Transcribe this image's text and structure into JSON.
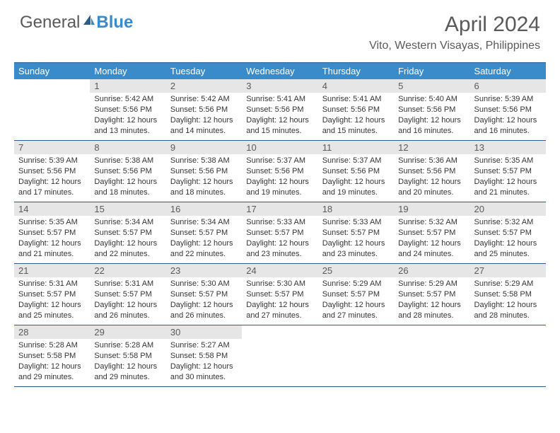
{
  "logo": {
    "text1": "General",
    "text2": "Blue"
  },
  "header": {
    "month_title": "April 2024",
    "location": "Vito, Western Visayas, Philippines"
  },
  "colors": {
    "header_bg": "#3a8bc9",
    "header_text": "#ffffff",
    "day_num_bg": "#e6e6e6",
    "border": "#2b5d8a",
    "text": "#353535",
    "title": "#5a5a5a"
  },
  "weekdays": [
    "Sunday",
    "Monday",
    "Tuesday",
    "Wednesday",
    "Thursday",
    "Friday",
    "Saturday"
  ],
  "weeks": [
    [
      null,
      {
        "n": "1",
        "sunrise": "Sunrise: 5:42 AM",
        "sunset": "Sunset: 5:56 PM",
        "day1": "Daylight: 12 hours",
        "day2": "and 13 minutes."
      },
      {
        "n": "2",
        "sunrise": "Sunrise: 5:42 AM",
        "sunset": "Sunset: 5:56 PM",
        "day1": "Daylight: 12 hours",
        "day2": "and 14 minutes."
      },
      {
        "n": "3",
        "sunrise": "Sunrise: 5:41 AM",
        "sunset": "Sunset: 5:56 PM",
        "day1": "Daylight: 12 hours",
        "day2": "and 15 minutes."
      },
      {
        "n": "4",
        "sunrise": "Sunrise: 5:41 AM",
        "sunset": "Sunset: 5:56 PM",
        "day1": "Daylight: 12 hours",
        "day2": "and 15 minutes."
      },
      {
        "n": "5",
        "sunrise": "Sunrise: 5:40 AM",
        "sunset": "Sunset: 5:56 PM",
        "day1": "Daylight: 12 hours",
        "day2": "and 16 minutes."
      },
      {
        "n": "6",
        "sunrise": "Sunrise: 5:39 AM",
        "sunset": "Sunset: 5:56 PM",
        "day1": "Daylight: 12 hours",
        "day2": "and 16 minutes."
      }
    ],
    [
      {
        "n": "7",
        "sunrise": "Sunrise: 5:39 AM",
        "sunset": "Sunset: 5:56 PM",
        "day1": "Daylight: 12 hours",
        "day2": "and 17 minutes."
      },
      {
        "n": "8",
        "sunrise": "Sunrise: 5:38 AM",
        "sunset": "Sunset: 5:56 PM",
        "day1": "Daylight: 12 hours",
        "day2": "and 18 minutes."
      },
      {
        "n": "9",
        "sunrise": "Sunrise: 5:38 AM",
        "sunset": "Sunset: 5:56 PM",
        "day1": "Daylight: 12 hours",
        "day2": "and 18 minutes."
      },
      {
        "n": "10",
        "sunrise": "Sunrise: 5:37 AM",
        "sunset": "Sunset: 5:56 PM",
        "day1": "Daylight: 12 hours",
        "day2": "and 19 minutes."
      },
      {
        "n": "11",
        "sunrise": "Sunrise: 5:37 AM",
        "sunset": "Sunset: 5:56 PM",
        "day1": "Daylight: 12 hours",
        "day2": "and 19 minutes."
      },
      {
        "n": "12",
        "sunrise": "Sunrise: 5:36 AM",
        "sunset": "Sunset: 5:56 PM",
        "day1": "Daylight: 12 hours",
        "day2": "and 20 minutes."
      },
      {
        "n": "13",
        "sunrise": "Sunrise: 5:35 AM",
        "sunset": "Sunset: 5:57 PM",
        "day1": "Daylight: 12 hours",
        "day2": "and 21 minutes."
      }
    ],
    [
      {
        "n": "14",
        "sunrise": "Sunrise: 5:35 AM",
        "sunset": "Sunset: 5:57 PM",
        "day1": "Daylight: 12 hours",
        "day2": "and 21 minutes."
      },
      {
        "n": "15",
        "sunrise": "Sunrise: 5:34 AM",
        "sunset": "Sunset: 5:57 PM",
        "day1": "Daylight: 12 hours",
        "day2": "and 22 minutes."
      },
      {
        "n": "16",
        "sunrise": "Sunrise: 5:34 AM",
        "sunset": "Sunset: 5:57 PM",
        "day1": "Daylight: 12 hours",
        "day2": "and 22 minutes."
      },
      {
        "n": "17",
        "sunrise": "Sunrise: 5:33 AM",
        "sunset": "Sunset: 5:57 PM",
        "day1": "Daylight: 12 hours",
        "day2": "and 23 minutes."
      },
      {
        "n": "18",
        "sunrise": "Sunrise: 5:33 AM",
        "sunset": "Sunset: 5:57 PM",
        "day1": "Daylight: 12 hours",
        "day2": "and 23 minutes."
      },
      {
        "n": "19",
        "sunrise": "Sunrise: 5:32 AM",
        "sunset": "Sunset: 5:57 PM",
        "day1": "Daylight: 12 hours",
        "day2": "and 24 minutes."
      },
      {
        "n": "20",
        "sunrise": "Sunrise: 5:32 AM",
        "sunset": "Sunset: 5:57 PM",
        "day1": "Daylight: 12 hours",
        "day2": "and 25 minutes."
      }
    ],
    [
      {
        "n": "21",
        "sunrise": "Sunrise: 5:31 AM",
        "sunset": "Sunset: 5:57 PM",
        "day1": "Daylight: 12 hours",
        "day2": "and 25 minutes."
      },
      {
        "n": "22",
        "sunrise": "Sunrise: 5:31 AM",
        "sunset": "Sunset: 5:57 PM",
        "day1": "Daylight: 12 hours",
        "day2": "and 26 minutes."
      },
      {
        "n": "23",
        "sunrise": "Sunrise: 5:30 AM",
        "sunset": "Sunset: 5:57 PM",
        "day1": "Daylight: 12 hours",
        "day2": "and 26 minutes."
      },
      {
        "n": "24",
        "sunrise": "Sunrise: 5:30 AM",
        "sunset": "Sunset: 5:57 PM",
        "day1": "Daylight: 12 hours",
        "day2": "and 27 minutes."
      },
      {
        "n": "25",
        "sunrise": "Sunrise: 5:29 AM",
        "sunset": "Sunset: 5:57 PM",
        "day1": "Daylight: 12 hours",
        "day2": "and 27 minutes."
      },
      {
        "n": "26",
        "sunrise": "Sunrise: 5:29 AM",
        "sunset": "Sunset: 5:57 PM",
        "day1": "Daylight: 12 hours",
        "day2": "and 28 minutes."
      },
      {
        "n": "27",
        "sunrise": "Sunrise: 5:29 AM",
        "sunset": "Sunset: 5:58 PM",
        "day1": "Daylight: 12 hours",
        "day2": "and 28 minutes."
      }
    ],
    [
      {
        "n": "28",
        "sunrise": "Sunrise: 5:28 AM",
        "sunset": "Sunset: 5:58 PM",
        "day1": "Daylight: 12 hours",
        "day2": "and 29 minutes."
      },
      {
        "n": "29",
        "sunrise": "Sunrise: 5:28 AM",
        "sunset": "Sunset: 5:58 PM",
        "day1": "Daylight: 12 hours",
        "day2": "and 29 minutes."
      },
      {
        "n": "30",
        "sunrise": "Sunrise: 5:27 AM",
        "sunset": "Sunset: 5:58 PM",
        "day1": "Daylight: 12 hours",
        "day2": "and 30 minutes."
      },
      null,
      null,
      null,
      null
    ]
  ]
}
